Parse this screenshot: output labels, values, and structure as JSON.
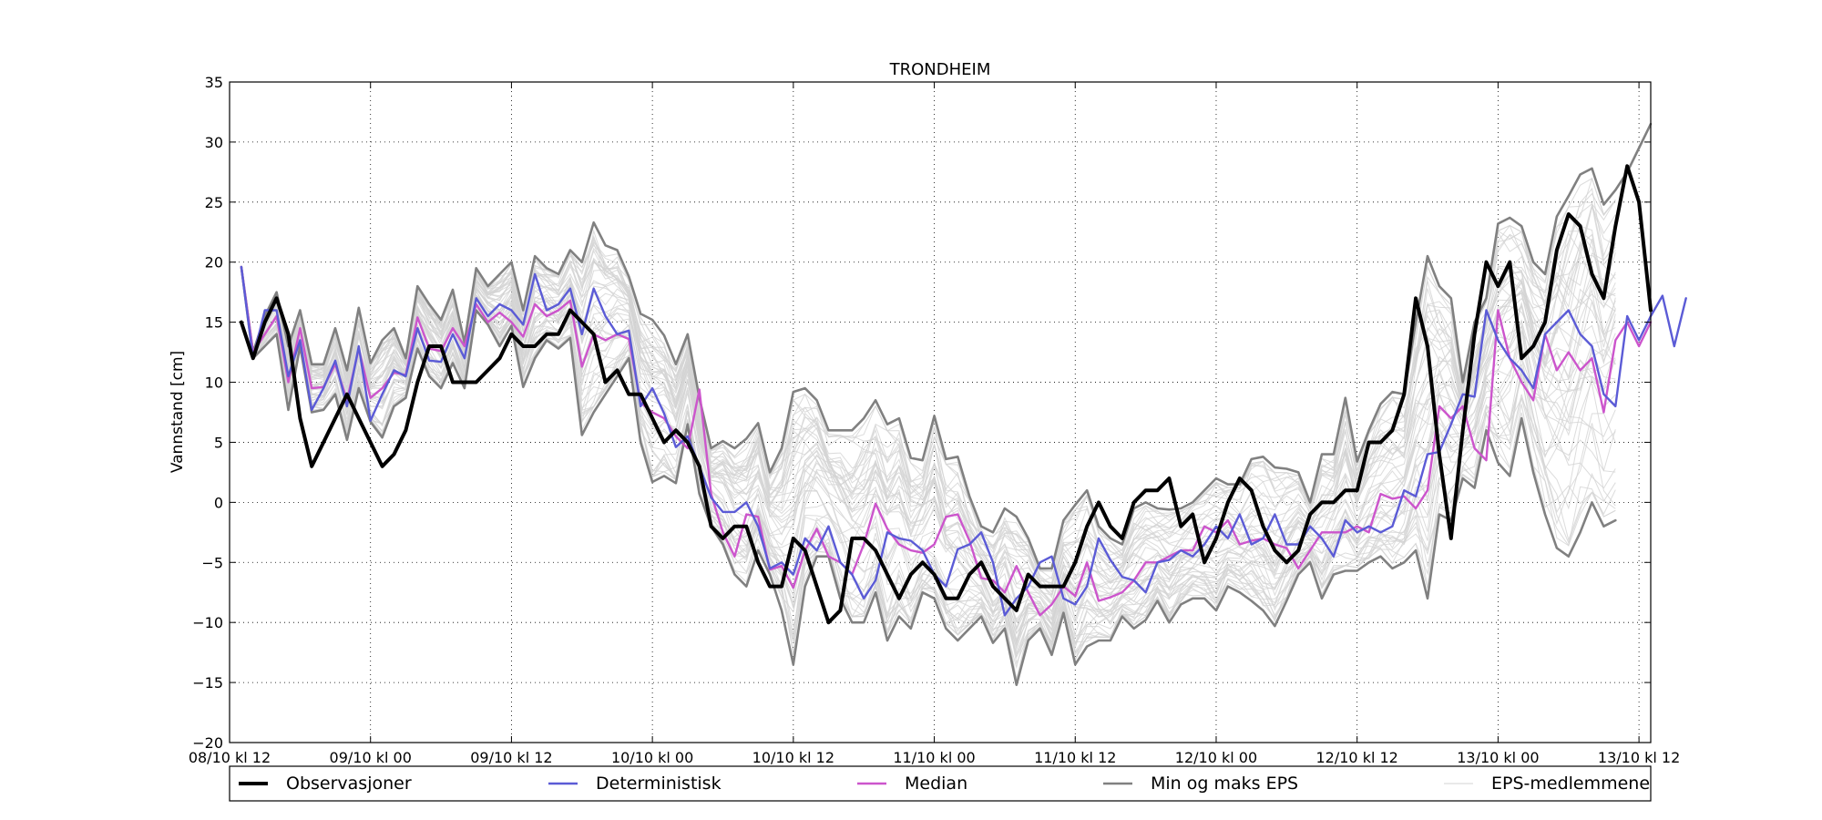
{
  "chart_data": {
    "type": "line",
    "title": "TRONDHEIM",
    "ylabel": "Vannstand [cm]",
    "xlabel": "",
    "x_unit": "hours from 08/10 kl 12",
    "x_step_hours": 1,
    "xlim": [
      0,
      121
    ],
    "ylim": [
      -20,
      35
    ],
    "yticks": [
      -20,
      -15,
      -10,
      -5,
      0,
      5,
      10,
      15,
      20,
      25,
      30,
      35
    ],
    "xticks": [
      {
        "x": 0,
        "label": "08/10 kl 12"
      },
      {
        "x": 12,
        "label": "09/10 kl 00"
      },
      {
        "x": 24,
        "label": "09/10 kl 12"
      },
      {
        "x": 36,
        "label": "10/10 kl 00"
      },
      {
        "x": 48,
        "label": "10/10 kl 12"
      },
      {
        "x": 60,
        "label": "11/10 kl 00"
      },
      {
        "x": 72,
        "label": "11/10 kl 12"
      },
      {
        "x": 84,
        "label": "12/10 kl 00"
      },
      {
        "x": 96,
        "label": "12/10 kl 12"
      },
      {
        "x": 108,
        "label": "13/10 kl 00"
      },
      {
        "x": 120,
        "label": "13/10 kl 12"
      }
    ],
    "grid": true,
    "legend_position": "bottom",
    "legend": [
      {
        "label": "Observasjoner",
        "color": "#000000"
      },
      {
        "label": "Deterministisk",
        "color": "#5b5bd6"
      },
      {
        "label": "Median",
        "color": "#cc55cc"
      },
      {
        "label": "Min og maks EPS",
        "color": "#808080"
      },
      {
        "label": "EPS-medlemmene",
        "color": "#d3d3d3"
      }
    ],
    "series": [
      {
        "name": "Observasjoner",
        "color": "#000000",
        "start_x": 1,
        "values": [
          15,
          12,
          15,
          17,
          14,
          7,
          3,
          5,
          7,
          9,
          7,
          5,
          3,
          4,
          6,
          10,
          13,
          13,
          10,
          10,
          10,
          11,
          12,
          14,
          13,
          13,
          14,
          14,
          16,
          15,
          14,
          10,
          11,
          9,
          9,
          7,
          5,
          6,
          5,
          3,
          -2,
          -3,
          -2,
          -2,
          -5,
          -7,
          -7,
          -3,
          -4,
          -7,
          -10,
          -9,
          -3,
          -3,
          -4,
          -6,
          -8,
          -6,
          -5,
          -6,
          -8,
          -8,
          -6,
          -5,
          -7,
          -8,
          -9,
          -6,
          -7,
          -7,
          -7,
          -5,
          -2,
          0,
          -2,
          -3,
          0,
          1,
          1,
          2,
          -2,
          -1,
          -5,
          -3,
          0,
          2,
          1,
          -2,
          -4,
          -5,
          -4,
          -1,
          0,
          0,
          1,
          1,
          5,
          5,
          6,
          9,
          17,
          13,
          4,
          -3,
          6,
          14,
          20,
          18,
          20,
          12,
          13,
          15,
          21,
          24,
          23,
          19,
          17,
          23,
          28,
          25,
          16
        ]
      },
      {
        "name": "Deterministisk",
        "color": "#5b5bd6",
        "start_x": 1,
        "values": [
          19.6,
          12,
          16,
          16,
          10.5,
          13.5,
          7.7,
          9.5,
          11.8,
          8,
          13,
          6.8,
          9,
          11,
          10.5,
          14.5,
          11.8,
          11.7,
          14,
          12,
          17,
          15.5,
          16.5,
          16,
          14.8,
          19,
          16,
          16.5,
          17.8,
          14,
          17.8,
          15.5,
          14,
          14.3,
          8,
          9.5,
          7.4,
          4.6,
          5.5,
          3,
          0.4,
          -0.8,
          -0.8,
          0,
          -2,
          -5.5,
          -5,
          -6,
          -3,
          -4,
          -2,
          -5,
          -6,
          -8,
          -6.5,
          -2.5,
          -3,
          -3.2,
          -4,
          -6,
          -7,
          -3.9,
          -3.5,
          -2.5,
          -5,
          -9.4,
          -8,
          -7,
          -5,
          -4.5,
          -8,
          -8.5,
          -7,
          -3,
          -4.8,
          -6.2,
          -6.5,
          -7.5,
          -5,
          -4.8,
          -4,
          -4.5,
          -3.5,
          -2,
          -3,
          -1,
          -3.5,
          -3,
          -1,
          -3.5,
          -3.5,
          -2,
          -3,
          -4.5,
          -1.5,
          -2.5,
          -2,
          -2.5,
          -2,
          1,
          0.5,
          4,
          4.2,
          6.5,
          9,
          8.8,
          16,
          13.5,
          12,
          11,
          9.5,
          14,
          15,
          16,
          14,
          13,
          9,
          8,
          15.5,
          13.5,
          15.5,
          17.2,
          13,
          17
        ]
      },
      {
        "name": "Median",
        "color": "#cc55cc",
        "start_x": 1,
        "values": [
          19.6,
          12.5,
          14,
          15.5,
          10,
          14.5,
          9.5,
          9.6,
          11.5,
          8.5,
          12.8,
          8.7,
          9.5,
          10.8,
          10.6,
          15.4,
          12.8,
          12.6,
          14.5,
          13,
          16.5,
          15,
          15.8,
          15,
          13.8,
          16.5,
          15.5,
          16,
          16.8,
          11.3,
          14,
          13.5,
          14,
          13.6,
          8.3,
          7.5,
          7,
          5.5,
          4.5,
          9.4,
          0.7,
          -2.5,
          -4.5,
          -1,
          -1.2,
          -5.6,
          -5.3,
          -7.1,
          -4,
          -2.2,
          -4.5,
          -5,
          -6,
          -3.5,
          -0.1,
          -2.2,
          -3.5,
          -4,
          -4.2,
          -3.5,
          -1.2,
          -1,
          -3.2,
          -6.3,
          -6.5,
          -7.5,
          -5.3,
          -7.5,
          -9.4,
          -8.5,
          -7,
          -7.8,
          -5,
          -8.2,
          -7.9,
          -7.5,
          -6.5,
          -5,
          -5,
          -4.5,
          -4,
          -4,
          -2,
          -2.5,
          -1.5,
          -3.5,
          -3.2,
          -3,
          -3.5,
          -3.8,
          -5.5,
          -4,
          -2.5,
          -2.5,
          -2.5,
          -2,
          -2.5,
          0.7,
          0.3,
          0.5,
          -0.5,
          1,
          8,
          7,
          8,
          4.5,
          3.5,
          16,
          12,
          10,
          8.5,
          14,
          11,
          12.5,
          11,
          12,
          7.5,
          13.5,
          15,
          13,
          15
        ]
      },
      {
        "name": "Min og maks EPS (maks)",
        "color": "#808080",
        "start_x": 1,
        "values": [
          19.6,
          12.5,
          15.5,
          17.5,
          13,
          16,
          11.5,
          11.5,
          14.5,
          11,
          16.2,
          11.6,
          13.5,
          14.5,
          12,
          18,
          16.5,
          15.2,
          17.7,
          13.3,
          19.5,
          18,
          19,
          20,
          16,
          20.5,
          19.5,
          19,
          21,
          20,
          23.3,
          21.4,
          21,
          18.8,
          15.7,
          15.2,
          13.9,
          11.5,
          14,
          8.7,
          4.5,
          5.1,
          4.5,
          5.3,
          6.6,
          2.5,
          4.5,
          9.2,
          9.5,
          8.5,
          6,
          6,
          6,
          7,
          8.5,
          6.5,
          7,
          3.7,
          3.5,
          7.2,
          3.6,
          3.8,
          0.5,
          -2,
          -2.5,
          -0.5,
          -1.2,
          -3,
          -5.5,
          -5.5,
          -1.5,
          -0.2,
          1,
          -2,
          -3,
          -3.5,
          -0.5,
          0,
          -0.5,
          -0.6,
          -0.5,
          0,
          1,
          2,
          1.5,
          1.5,
          3.6,
          3.8,
          2.9,
          2.8,
          2.5,
          0,
          4,
          4,
          8.7,
          3.4,
          6,
          8.2,
          9.2,
          9,
          15,
          20.5,
          18,
          17,
          10,
          15,
          17,
          23.2,
          23.7,
          23,
          20,
          19,
          23.8,
          25.5,
          27.3,
          27.8,
          24.8,
          26,
          27.5,
          29.5,
          31.5
        ]
      },
      {
        "name": "Min og maks EPS (min)",
        "color": "#808080",
        "start_x": 1,
        "values": [
          19.6,
          12,
          13,
          14,
          7.7,
          13,
          7.5,
          7.7,
          9,
          5.2,
          9.5,
          6.7,
          5.4,
          8,
          8.7,
          12.8,
          10.5,
          9.5,
          11.6,
          9.5,
          16,
          14.8,
          13,
          14.7,
          9.6,
          12,
          13.5,
          12.8,
          13.7,
          5.6,
          7.5,
          9,
          10.5,
          12,
          5,
          1.7,
          2.2,
          1.6,
          6.5,
          0.7,
          -2,
          -3.5,
          -6,
          -7,
          -4,
          -6,
          -9,
          -13.5,
          -7,
          -4.5,
          -4.5,
          -8,
          -10,
          -10,
          -7.5,
          -11.5,
          -9.5,
          -10.5,
          -7.5,
          -8,
          -10.5,
          -11.5,
          -10.5,
          -9.5,
          -11.7,
          -10.5,
          -15.2,
          -11.5,
          -10.5,
          -12.7,
          -9.2,
          -13.5,
          -12,
          -11.5,
          -11.5,
          -9.5,
          -10.5,
          -9.8,
          -8.2,
          -10,
          -8.5,
          -8,
          -8,
          -9,
          -7,
          -7.5,
          -8.2,
          -9,
          -10.3,
          -8.2,
          -6,
          -5,
          -8,
          -6,
          -5.7,
          -5.7,
          -5,
          -4.5,
          -5.5,
          -5,
          -4,
          -8,
          -1,
          -1.5,
          2,
          1.2,
          6,
          3.3,
          2.2,
          7,
          2.5,
          -1,
          -3.8,
          -4.5,
          -2.5,
          0,
          -2,
          -1.5
        ]
      }
    ],
    "eps_members": {
      "name": "EPS-medlemmene",
      "color": "#d3d3d3",
      "count": 50,
      "note": "spread between Min og maks EPS"
    }
  }
}
